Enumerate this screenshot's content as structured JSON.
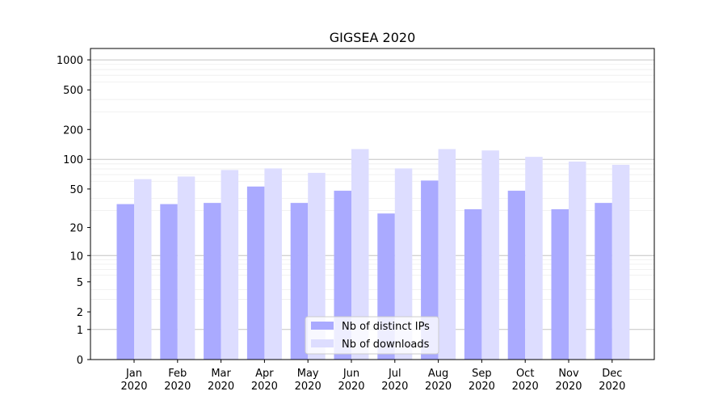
{
  "chart_data": {
    "type": "bar",
    "title": "GIGSEA 2020",
    "xlabel": "",
    "ylabel": "",
    "yscale": "symlog",
    "ylim": [
      0,
      1300
    ],
    "yticks": [
      0,
      1,
      2,
      5,
      10,
      20,
      50,
      100,
      200,
      500,
      1000
    ],
    "grid": true,
    "legend_position": "bottom-center",
    "categories": [
      "Jan\n2020",
      "Feb\n2020",
      "Mar\n2020",
      "Apr\n2020",
      "May\n2020",
      "Jun\n2020",
      "Jul\n2020",
      "Aug\n2020",
      "Sep\n2020",
      "Oct\n2020",
      "Nov\n2020",
      "Dec\n2020"
    ],
    "series": [
      {
        "name": "Nb of distinct IPs",
        "color": "#aaaaff",
        "values": [
          35,
          35,
          36,
          53,
          36,
          48,
          28,
          61,
          31,
          48,
          31,
          36
        ]
      },
      {
        "name": "Nb of downloads",
        "color": "#ddddff",
        "values": [
          63,
          67,
          78,
          81,
          73,
          127,
          81,
          127,
          123,
          106,
          95,
          88
        ]
      }
    ]
  }
}
